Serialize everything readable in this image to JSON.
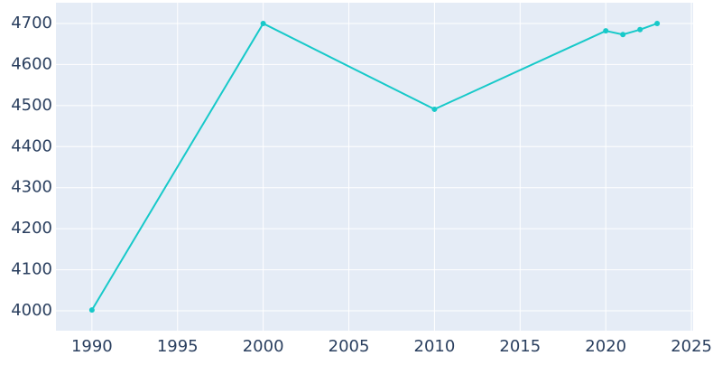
{
  "chart_data": {
    "type": "line",
    "x": [
      1990,
      2000,
      2010,
      2020,
      2021,
      2022,
      2023
    ],
    "series": [
      {
        "color": "#17c9c9",
        "values": [
          4002,
          4700,
          4491,
          4682,
          4673,
          4685,
          4700
        ]
      }
    ],
    "xlim": [
      1987.9,
      2025.1
    ],
    "xticks": [
      1990,
      1995,
      2000,
      2005,
      2010,
      2015,
      2020,
      2025
    ],
    "ylim": [
      3951.6,
      4750.6
    ],
    "yticks": [
      4000,
      4100,
      4200,
      4300,
      4400,
      4500,
      4600,
      4700
    ],
    "grid": true,
    "background": "#e5ecf6"
  }
}
